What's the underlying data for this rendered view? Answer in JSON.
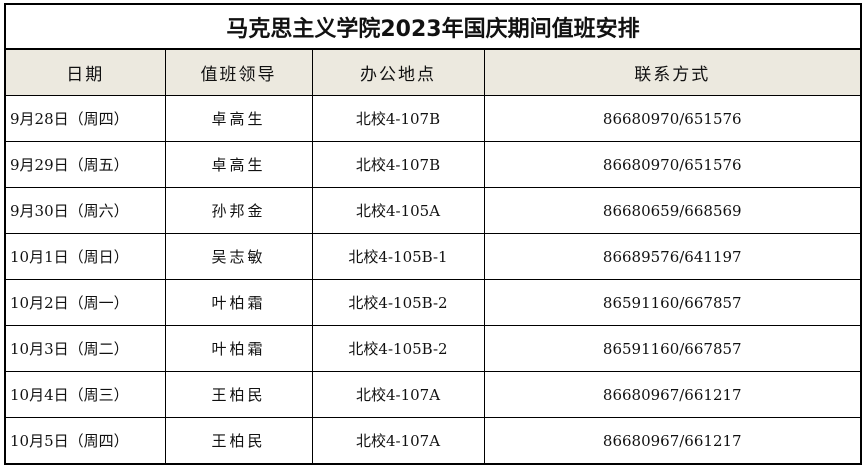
{
  "title": "马克思主义学院2023年国庆期间值班安排",
  "headers": [
    "日期",
    "值班领导",
    "办公地点",
    "联系方式"
  ],
  "rows": [
    {
      "date": "9月28日（周四）",
      "leader": "卓高生",
      "location": "北校4-107B",
      "contact": "86680970/651576"
    },
    {
      "date": "9月29日（周五）",
      "leader": "卓高生",
      "location": "北校4-107B",
      "contact": "86680970/651576"
    },
    {
      "date": "9月30日（周六）",
      "leader": "孙邦金",
      "location": "北校4-105A",
      "contact": "86680659/668569"
    },
    {
      "date": "10月1日（周日）",
      "leader": "吴志敏",
      "location": "北校4-105B-1",
      "contact": "86689576/641197"
    },
    {
      "date": "10月2日（周一）",
      "leader": "叶柏霜",
      "location": "北校4-105B-2",
      "contact": "86591160/667857"
    },
    {
      "date": "10月3日（周二）",
      "leader": "叶柏霜",
      "location": "北校4-105B-2",
      "contact": "86591160/667857"
    },
    {
      "date": "10月4日（周三）",
      "leader": "王柏民",
      "location": "北校4-107A",
      "contact": "86680967/661217"
    },
    {
      "date": "10月5日（周四）",
      "leader": "王柏民",
      "location": "北校4-107A",
      "contact": "86680967/661217"
    }
  ],
  "colors": {
    "header_bg": "#ece9df",
    "border": "#000000"
  }
}
